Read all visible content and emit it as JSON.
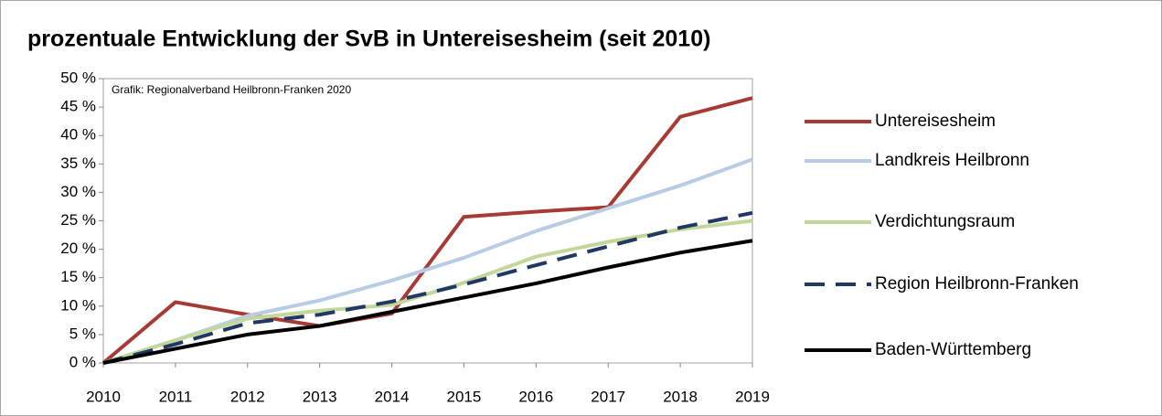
{
  "chart_data": {
    "type": "line",
    "title": "prozentuale Entwicklung der SvB in Untereisesheim (seit 2010)",
    "annotation": "Grafik: Regionalverband Heilbronn-Franken 2020",
    "categories": [
      "2010",
      "2011",
      "2012",
      "2013",
      "2014",
      "2015",
      "2016",
      "2017",
      "2018",
      "2019"
    ],
    "series": [
      {
        "name": "Untereisesheim",
        "color": "#a83a36",
        "values": [
          0,
          10.7,
          8.5,
          6.5,
          8.7,
          25.7,
          26.6,
          27.4,
          43.3,
          46.6
        ]
      },
      {
        "name": "Landkreis Heilbronn",
        "color": "#b8cce4",
        "values": [
          0,
          4,
          8.3,
          11,
          14.5,
          18.5,
          23.2,
          27.2,
          31.2,
          35.8
        ]
      },
      {
        "name": "Verdichtungsraum",
        "color": "#c4d79b",
        "values": [
          0,
          4,
          7.8,
          9.2,
          10.2,
          14.1,
          18.7,
          21.3,
          23.5,
          25
        ]
      },
      {
        "name": "Region Heilbronn-Franken",
        "color": "#1f3864",
        "style": "dashed",
        "values": [
          0,
          3.3,
          7,
          8.5,
          10.8,
          13.8,
          17.2,
          20.5,
          23.8,
          26.4
        ]
      },
      {
        "name": "Baden-Württemberg",
        "color": "#000000",
        "values": [
          0,
          2.5,
          5,
          6.5,
          9,
          11.5,
          14,
          16.8,
          19.4,
          21.5
        ]
      }
    ],
    "ylim": [
      0,
      50
    ],
    "yticks": [
      {
        "value": 0,
        "label": "0 %"
      },
      {
        "value": 5,
        "label": "5 %"
      },
      {
        "value": 10,
        "label": "10 %"
      },
      {
        "value": 15,
        "label": "15 %"
      },
      {
        "value": 20,
        "label": "20 %"
      },
      {
        "value": 25,
        "label": "25 %"
      },
      {
        "value": 30,
        "label": "30 %"
      },
      {
        "value": 35,
        "label": "35 %"
      },
      {
        "value": 40,
        "label": "40 %"
      },
      {
        "value": 45,
        "label": "45 %"
      },
      {
        "value": 50,
        "label": "50 %"
      }
    ],
    "grid": false,
    "legend": "right"
  }
}
